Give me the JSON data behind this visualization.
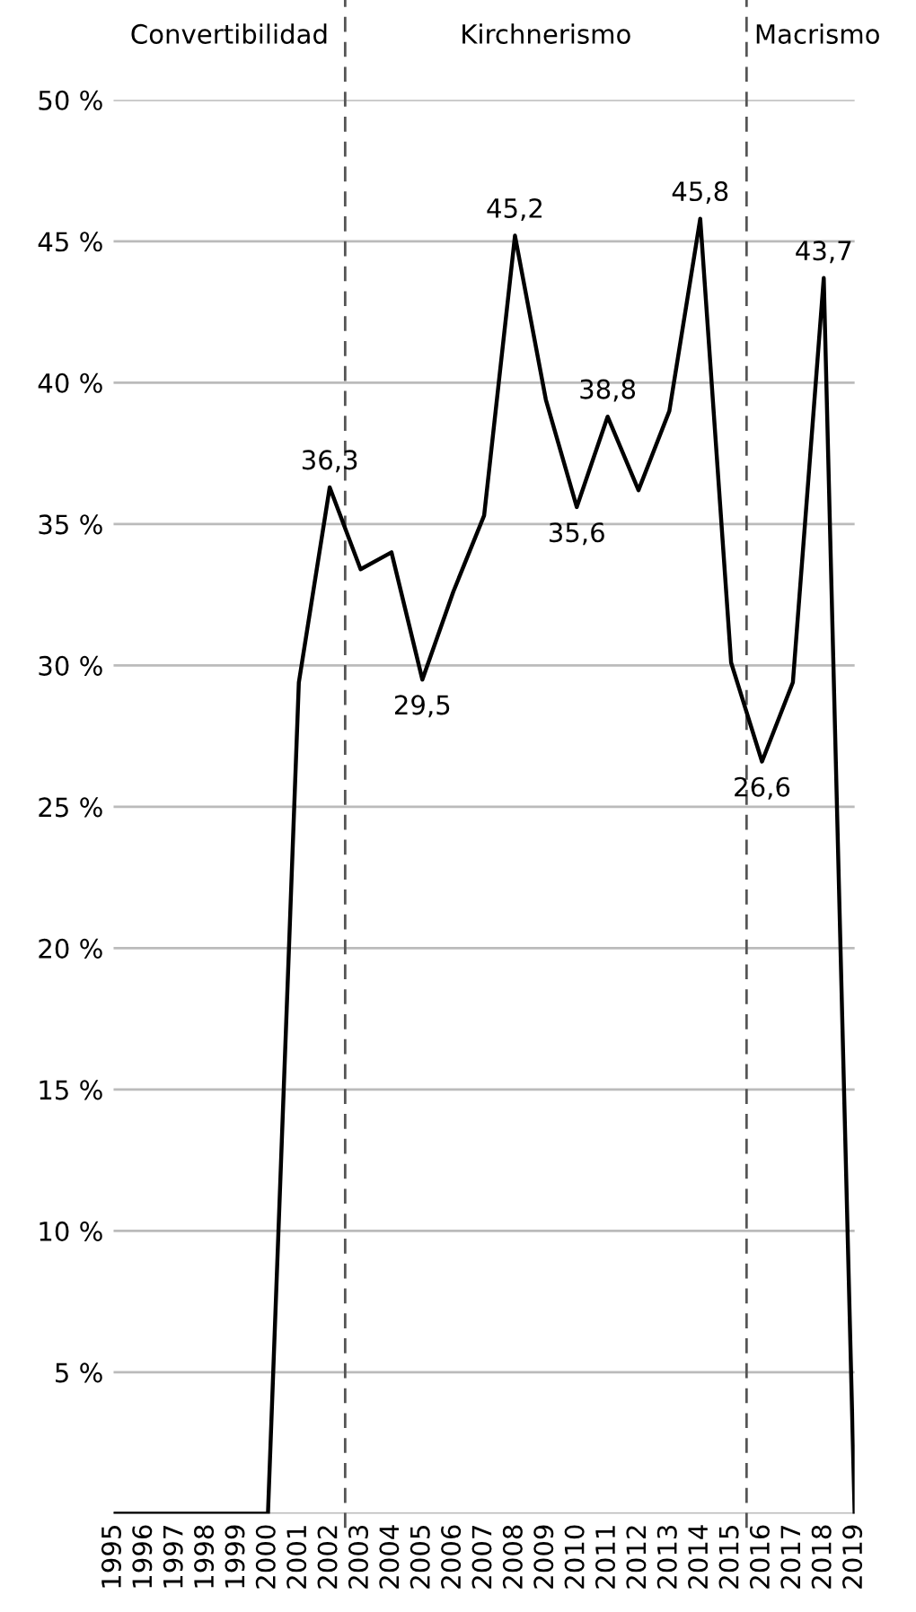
{
  "chart_data": {
    "type": "line",
    "x": [
      1995,
      1996,
      1997,
      1998,
      1999,
      2000,
      2001,
      2002,
      2003,
      2004,
      2005,
      2006,
      2007,
      2008,
      2009,
      2010,
      2011,
      2012,
      2013,
      2014,
      2015,
      2016,
      2017,
      2018,
      2019
    ],
    "series": [
      {
        "color": "#000000",
        "values": [
          0,
          0,
          0,
          0,
          0,
          0,
          29.4,
          36.3,
          33.4,
          34.0,
          29.5,
          32.6,
          35.3,
          45.2,
          39.4,
          35.6,
          38.8,
          36.2,
          39.0,
          45.8,
          30.1,
          26.6,
          29.4,
          43.7,
          0
        ],
        "value_labels": [
          null,
          null,
          null,
          null,
          null,
          null,
          null,
          "36,3",
          null,
          null,
          "29,5",
          null,
          null,
          "45,2",
          null,
          "35,6",
          "38,8",
          null,
          null,
          "45,8",
          null,
          "26,6",
          null,
          "43,7",
          null
        ]
      }
    ],
    "xlim": [
      1995,
      2019
    ],
    "xticks": [
      1995,
      1996,
      1997,
      1998,
      1999,
      2000,
      2001,
      2002,
      2003,
      2004,
      2005,
      2006,
      2007,
      2008,
      2009,
      2010,
      2011,
      2012,
      2013,
      2014,
      2015,
      2016,
      2017,
      2018,
      2019
    ],
    "ylim": [
      0,
      50
    ],
    "yticks": [
      {
        "value": 0,
        "label": null
      },
      {
        "value": 5,
        "label": "5 %"
      },
      {
        "value": 10,
        "label": "10 %"
      },
      {
        "value": 15,
        "label": "15 %"
      },
      {
        "value": 20,
        "label": "20 %"
      },
      {
        "value": 25,
        "label": "25 %"
      },
      {
        "value": 30,
        "label": "30 %"
      },
      {
        "value": 35,
        "label": "35 %"
      },
      {
        "value": 40,
        "label": "40 %"
      },
      {
        "value": 45,
        "label": "45 %"
      },
      {
        "value": 50,
        "label": "50 %"
      }
    ],
    "grid": "y",
    "marker": "none",
    "line_style": "solid",
    "ref_lines": [
      {
        "axis": "x",
        "value": 2002.5,
        "color": "#555555",
        "line_style": "dashed"
      },
      {
        "axis": "x",
        "value": 2015.5,
        "color": "#555555",
        "line_style": "dashed"
      }
    ],
    "annotations": [
      "Convertibilidad",
      "Kirchnerismo",
      "Macrismo"
    ]
  }
}
